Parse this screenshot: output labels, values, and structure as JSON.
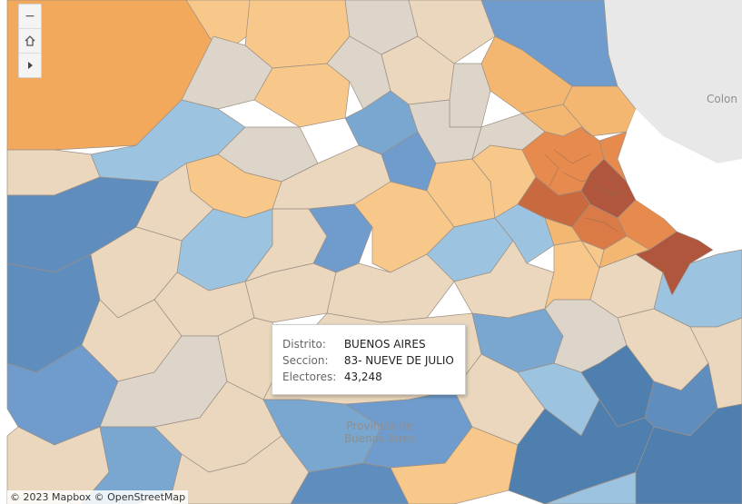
{
  "map": {
    "country_label": "Colon",
    "province_label": [
      "Provincia de",
      "Buenos Aires"
    ]
  },
  "controls": {
    "zoom_out_icon": "minus-icon",
    "home_icon": "home-icon",
    "expand_icon": "play-triangle-icon"
  },
  "tooltip": {
    "rows": [
      {
        "key": "Distrito:",
        "value": "BUENOS AIRES"
      },
      {
        "key": "Seccion:",
        "value": "83- NUEVE DE JULIO"
      },
      {
        "key": "Electores:",
        "value": "43,248"
      }
    ]
  },
  "attribution": "© 2023 Mapbox  © OpenStreetMap",
  "colors": {
    "water": "#ffffff",
    "land_outside": "#e6e6e6",
    "orange_dark": "#b0563c",
    "orange_mid": "#e68a4e",
    "orange_light": "#f3b772",
    "orange_pale": "#f7c88a",
    "beige": "#ead7bd",
    "gray": "#ddd5c9",
    "blue_light": "#9cc3df",
    "blue_mid": "#7aa7cf",
    "blue_dark": "#4f7faf"
  }
}
